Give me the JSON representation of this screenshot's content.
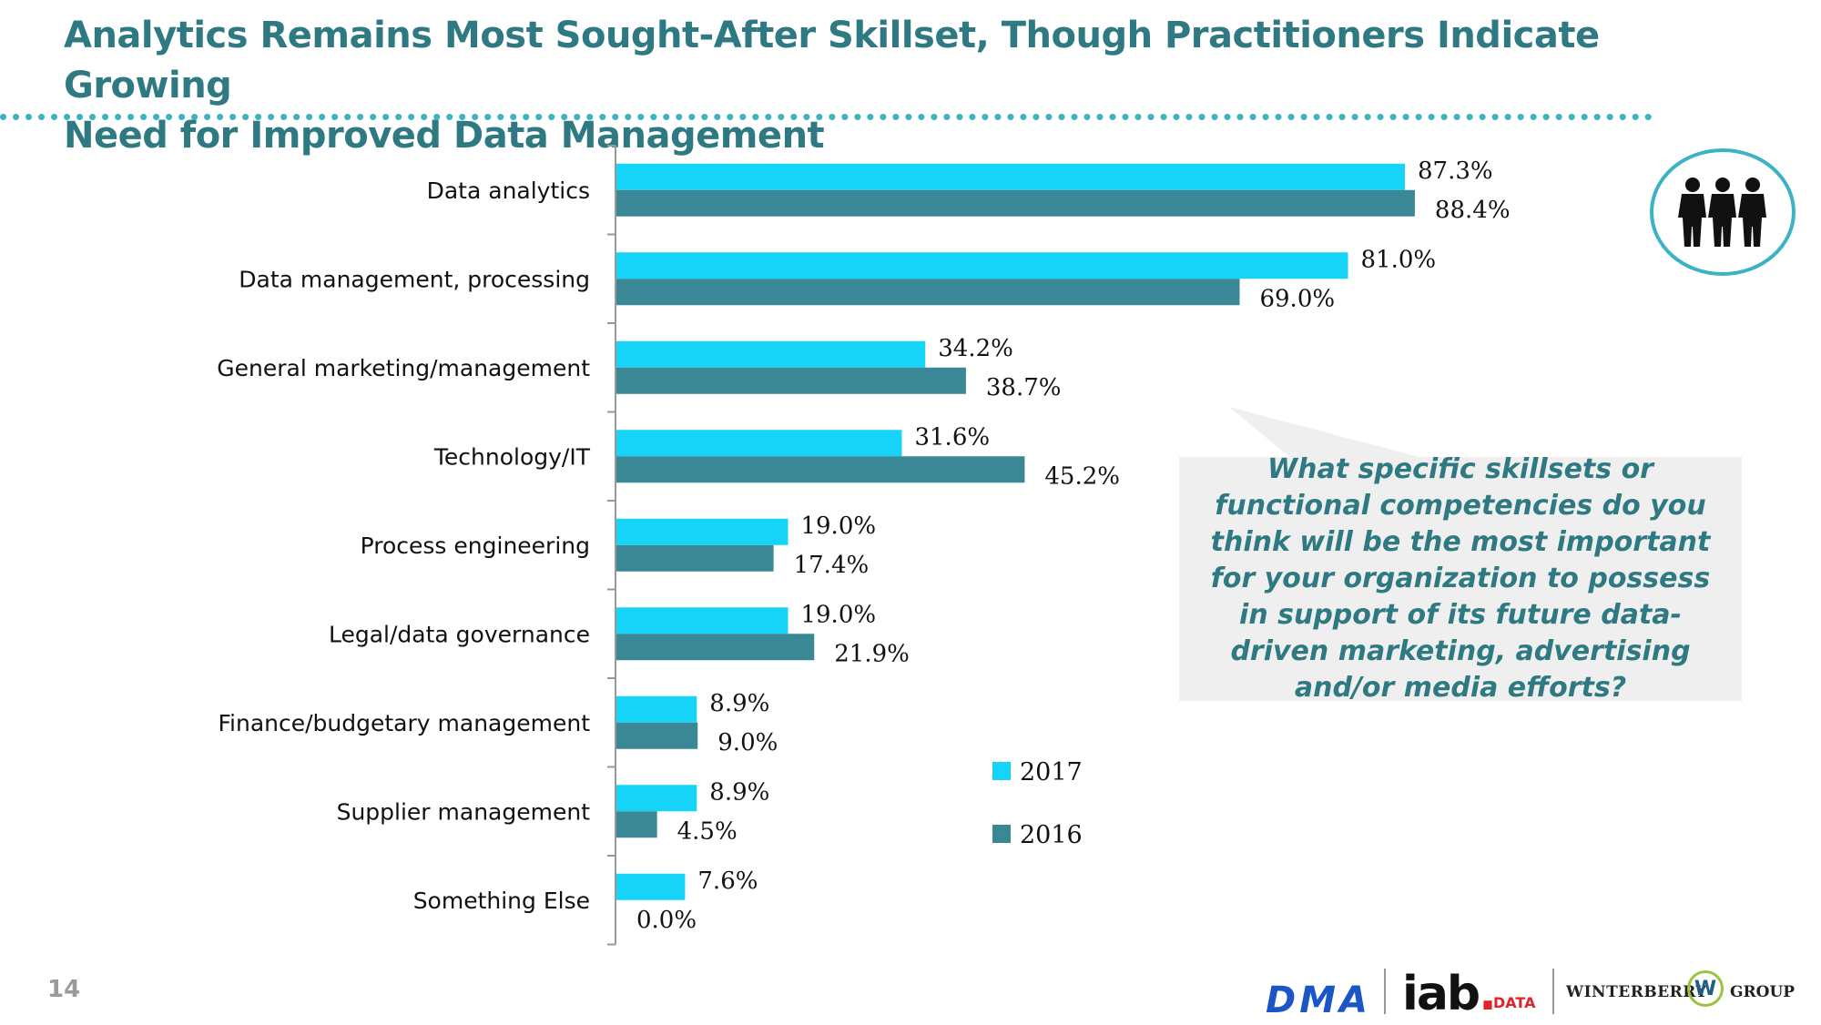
{
  "title": {
    "line1": "Analytics Remains Most Sought-After Skillset, Though Practitioners Indicate Growing",
    "line2": "Need for Improved Data Management"
  },
  "callout": {
    "text": "What specific skillsets or functional competencies do you think will be the most important for your organization to possess in support of its future data-driven marketing, advertising and/or media efforts?"
  },
  "page_number": "14",
  "footer": {
    "dma": "DMA",
    "iab": "iab",
    "iab_dot": ".",
    "iab_data": "DATA",
    "winterberry": "WINTERBERRY",
    "w": "W",
    "group": "GROUP"
  },
  "icons": {
    "people": "people-group-icon"
  },
  "colors": {
    "series_2017": "#16d4f7",
    "series_2016": "#3a8895",
    "title": "#2f7a82",
    "accent": "#3bb3c3"
  },
  "chart_data": {
    "type": "bar",
    "orientation": "horizontal",
    "categories": [
      "Data analytics",
      "Data management, processing",
      "General marketing/management",
      "Technology/IT",
      "Process engineering",
      "Legal/data governance",
      "Finance/budgetary management",
      "Supplier management",
      "Something Else"
    ],
    "series": [
      {
        "name": "2017",
        "values": [
          87.3,
          81.0,
          34.2,
          31.6,
          19.0,
          19.0,
          8.9,
          8.9,
          7.6
        ],
        "labels": [
          "87.3%",
          "81.0%",
          "34.2%",
          "31.6%",
          "19.0%",
          "19.0%",
          "8.9%",
          "8.9%",
          "7.6%"
        ]
      },
      {
        "name": "2016",
        "values": [
          88.4,
          69.0,
          38.7,
          45.2,
          17.4,
          21.9,
          9.0,
          4.5,
          0.0
        ],
        "labels": [
          "88.4%",
          "69.0%",
          "38.7%",
          "45.2%",
          "17.4%",
          "21.9%",
          "9.0%",
          "4.5%",
          "0.0%"
        ]
      }
    ],
    "xlim": [
      0,
      100
    ],
    "legend_position": "bottom-right",
    "grid": false,
    "title": "",
    "xlabel": "",
    "ylabel": ""
  }
}
